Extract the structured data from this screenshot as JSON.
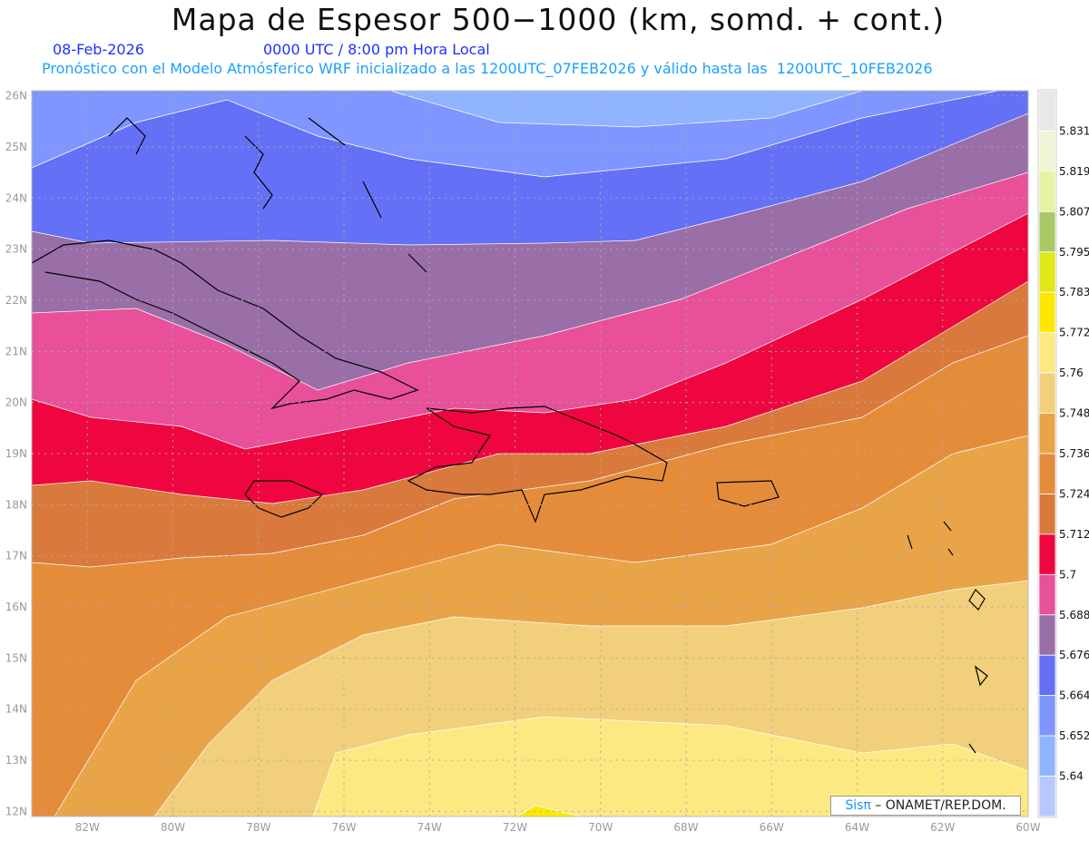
{
  "header": {
    "title": "Mapa de Espesor 500−1000 (km, somd. + cont.)",
    "date": "08-Feb-2026",
    "time": "0000 UTC / 8:00 pm Hora Local",
    "subtitle": "Pronóstico con el Modelo Atmósferico WRF inicializado a las 1200UTC_07FEB2026 y válido hasta las  1200UTC_10FEB2026"
  },
  "logo": {
    "brand": "Sisπ",
    "text": " –  ONAMET/REP.DOM."
  },
  "chart_data": {
    "type": "heatmap",
    "title": "Mapa de Espesor 500-1000 (km, somd. + cont.)",
    "x_ticks": [
      "82W",
      "80W",
      "78W",
      "76W",
      "74W",
      "72W",
      "70W",
      "68W",
      "66W",
      "64W",
      "62W",
      "60W"
    ],
    "y_ticks": [
      "26N",
      "25N",
      "24N",
      "23N",
      "22N",
      "21N",
      "20N",
      "19N",
      "18N",
      "17N",
      "16N",
      "15N",
      "14N",
      "13N",
      "12N"
    ],
    "xlim": [
      -83.3,
      -60
    ],
    "ylim": [
      11.9,
      26.1
    ],
    "grid": true,
    "colorbar": {
      "labels": [
        "5.831",
        "5.819",
        "5.807",
        "5.795",
        "5.783",
        "5.772",
        "5.76",
        "5.748",
        "5.736",
        "5.724",
        "5.712",
        "5.7",
        "5.688",
        "5.676",
        "5.664",
        "5.652",
        "5.64"
      ],
      "colors": [
        "#e8e8e8",
        "#eef5d5",
        "#e5f3a2",
        "#a8c966",
        "#e0e817",
        "#fce800",
        "#fde982",
        "#f2cf7a",
        "#eaa448",
        "#e58c3a",
        "#d97a3c",
        "#ef0640",
        "#e8509a",
        "#9a6fa8",
        "#6470f5",
        "#7f95ff",
        "#91b4ff",
        "#b8c8ff"
      ]
    },
    "thickness_trend": "increases from ~5.65 km north (26N) to ~5.78 km south (12N)"
  }
}
